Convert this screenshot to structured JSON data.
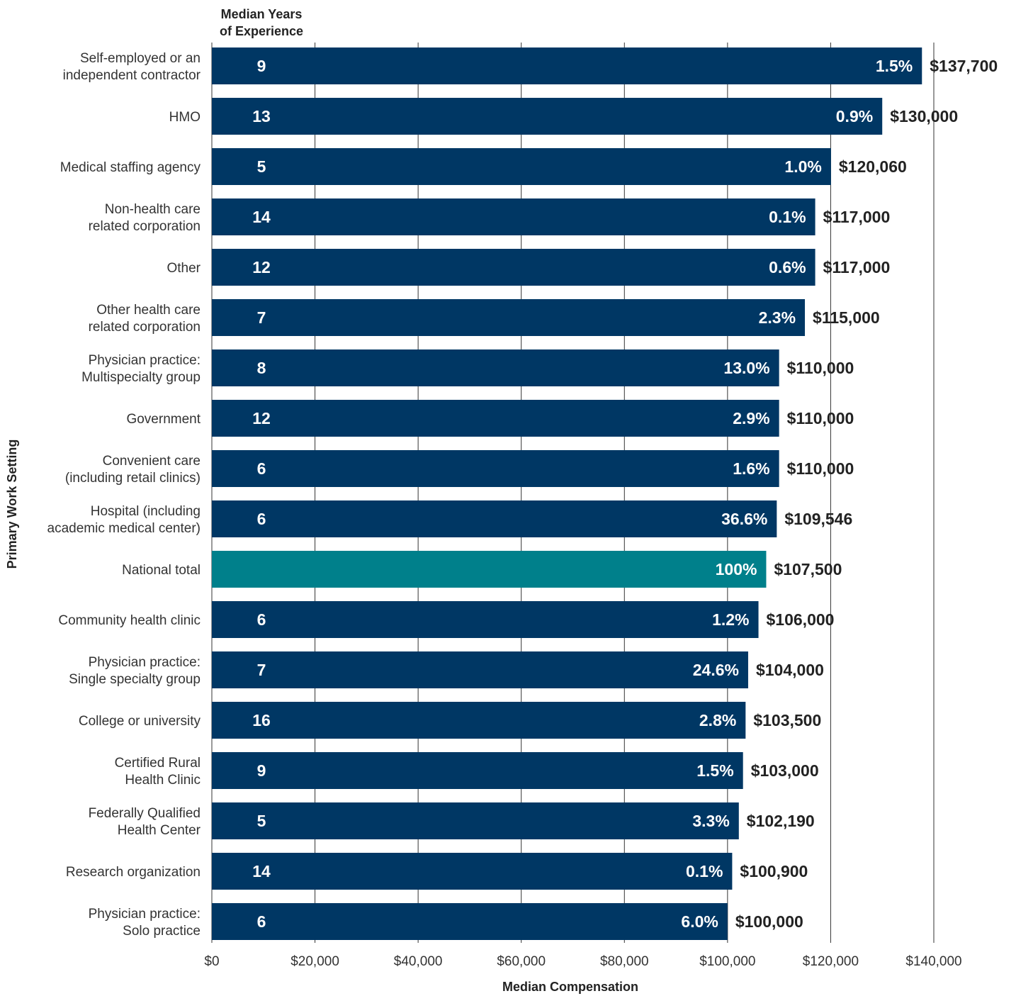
{
  "chart_data": {
    "type": "bar",
    "orientation": "horizontal",
    "title": "",
    "xlabel": "Median Compensation",
    "ylabel": "Primary Work Setting",
    "column_header": [
      "Median Years",
      "of Experience"
    ],
    "xlim": [
      0,
      140000
    ],
    "xticks": [
      0,
      20000,
      40000,
      60000,
      80000,
      100000,
      120000,
      140000
    ],
    "xtick_labels": [
      "$0",
      "$20,000",
      "$40,000",
      "$60,000",
      "$80,000",
      "$100,000",
      "$120,000",
      "$140,000"
    ],
    "grid": "vertical",
    "colors": {
      "bar": "#003764",
      "highlight": "#00808b",
      "grid": "#333333"
    },
    "categories": [
      {
        "label": [
          "Self-employed or an",
          "independent contractor"
        ],
        "value": 137700,
        "value_label": "$137,700",
        "years": "9",
        "percent": "1.5%",
        "highlight": false
      },
      {
        "label": [
          "HMO"
        ],
        "value": 130000,
        "value_label": "$130,000",
        "years": "13",
        "percent": "0.9%",
        "highlight": false
      },
      {
        "label": [
          "Medical staffing agency"
        ],
        "value": 120060,
        "value_label": "$120,060",
        "years": "5",
        "percent": "1.0%",
        "highlight": false
      },
      {
        "label": [
          "Non-health care",
          "related corporation"
        ],
        "value": 117000,
        "value_label": "$117,000",
        "years": "14",
        "percent": "0.1%",
        "highlight": false
      },
      {
        "label": [
          "Other"
        ],
        "value": 117000,
        "value_label": "$117,000",
        "years": "12",
        "percent": "0.6%",
        "highlight": false
      },
      {
        "label": [
          "Other health care",
          "related corporation"
        ],
        "value": 115000,
        "value_label": "$115,000",
        "years": "7",
        "percent": "2.3%",
        "highlight": false
      },
      {
        "label": [
          "Physician practice:",
          "Multispecialty group"
        ],
        "value": 110000,
        "value_label": "$110,000",
        "years": "8",
        "percent": "13.0%",
        "highlight": false
      },
      {
        "label": [
          "Government"
        ],
        "value": 110000,
        "value_label": "$110,000",
        "years": "12",
        "percent": "2.9%",
        "highlight": false
      },
      {
        "label": [
          "Convenient care",
          "(including retail clinics)"
        ],
        "value": 110000,
        "value_label": "$110,000",
        "years": "6",
        "percent": "1.6%",
        "highlight": false
      },
      {
        "label": [
          "Hospital (including",
          "academic medical center)"
        ],
        "value": 109546,
        "value_label": "$109,546",
        "years": "6",
        "percent": "36.6%",
        "highlight": false
      },
      {
        "label": [
          "National total"
        ],
        "value": 107500,
        "value_label": "$107,500",
        "years": "",
        "percent": "100%",
        "highlight": true
      },
      {
        "label": [
          "Community health clinic"
        ],
        "value": 106000,
        "value_label": "$106,000",
        "years": "6",
        "percent": "1.2%",
        "highlight": false
      },
      {
        "label": [
          "Physician practice:",
          "Single specialty group"
        ],
        "value": 104000,
        "value_label": "$104,000",
        "years": "7",
        "percent": "24.6%",
        "highlight": false
      },
      {
        "label": [
          "College or university"
        ],
        "value": 103500,
        "value_label": "$103,500",
        "years": "16",
        "percent": "2.8%",
        "highlight": false
      },
      {
        "label": [
          "Certified Rural",
          "Health Clinic"
        ],
        "value": 103000,
        "value_label": "$103,000",
        "years": "9",
        "percent": "1.5%",
        "highlight": false
      },
      {
        "label": [
          "Federally Qualified",
          "Health Center"
        ],
        "value": 102190,
        "value_label": "$102,190",
        "years": "5",
        "percent": "3.3%",
        "highlight": false
      },
      {
        "label": [
          "Research organization"
        ],
        "value": 100900,
        "value_label": "$100,900",
        "years": "14",
        "percent": "0.1%",
        "highlight": false
      },
      {
        "label": [
          "Physician practice:",
          "Solo practice"
        ],
        "value": 100000,
        "value_label": "$100,000",
        "years": "6",
        "percent": "6.0%",
        "highlight": false
      }
    ]
  }
}
